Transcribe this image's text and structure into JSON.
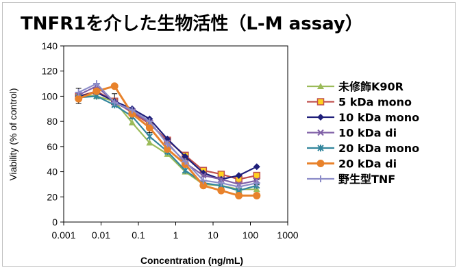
{
  "title": "TNFR1を介した生物活性（L-M assay）",
  "chart_data": {
    "type": "line",
    "xlabel": "Concentration (ng/mL)",
    "ylabel": "Viability (% of control)",
    "xscale": "log",
    "xlim": [
      0.001,
      1000
    ],
    "ylim": [
      0,
      140
    ],
    "xticks": [
      "0.001",
      "0.01",
      "0.1",
      "1",
      "10",
      "100",
      "1000"
    ],
    "yticks": [
      "0",
      "20",
      "40",
      "60",
      "80",
      "100",
      "120",
      "140"
    ],
    "grid": false,
    "legend_position": "right",
    "x": [
      0.0025,
      0.0076,
      0.023,
      0.068,
      0.2,
      0.6,
      1.8,
      5.5,
      16.5,
      49,
      148
    ],
    "series": [
      {
        "name": "未修飾K90R",
        "color": "#9bbb59",
        "marker": "triangle",
        "values": [
          101,
          100,
          96,
          79,
          63,
          54,
          40,
          30,
          29,
          26,
          26
        ]
      },
      {
        "name": "5 kDa mono",
        "color": "#c0504d",
        "marker": "square-open-yellow",
        "values": [
          100,
          104,
          96,
          87,
          78,
          65,
          53,
          41,
          38,
          34,
          37
        ]
      },
      {
        "name": "10 kDa mono",
        "color": "#1f1f7a",
        "marker": "diamond",
        "values": [
          100,
          103,
          96,
          90,
          82,
          66,
          52,
          39,
          34,
          37,
          44
        ]
      },
      {
        "name": "10 kDa di",
        "color": "#7f5fa6",
        "marker": "x",
        "values": [
          101,
          108,
          95,
          88,
          79,
          63,
          47,
          37,
          34,
          30,
          33
        ]
      },
      {
        "name": "20 kDa mono",
        "color": "#31859c",
        "marker": "asterisk",
        "values": [
          99,
          100,
          93,
          84,
          68,
          56,
          41,
          31,
          29,
          25,
          29
        ]
      },
      {
        "name": "20 kDa di",
        "color": "#e8822b",
        "marker": "circle",
        "values": [
          98,
          104,
          108,
          86,
          75,
          58,
          46,
          29,
          25,
          21,
          21
        ]
      },
      {
        "name": "野生型TNF",
        "color": "#8c8cc8",
        "marker": "plus",
        "values": [
          103,
          110,
          95,
          89,
          80,
          62,
          48,
          33,
          31,
          28,
          31
        ]
      }
    ],
    "error_bars": [
      6,
      6,
      5,
      4,
      4,
      6,
      3,
      3,
      3,
      2,
      2
    ]
  }
}
